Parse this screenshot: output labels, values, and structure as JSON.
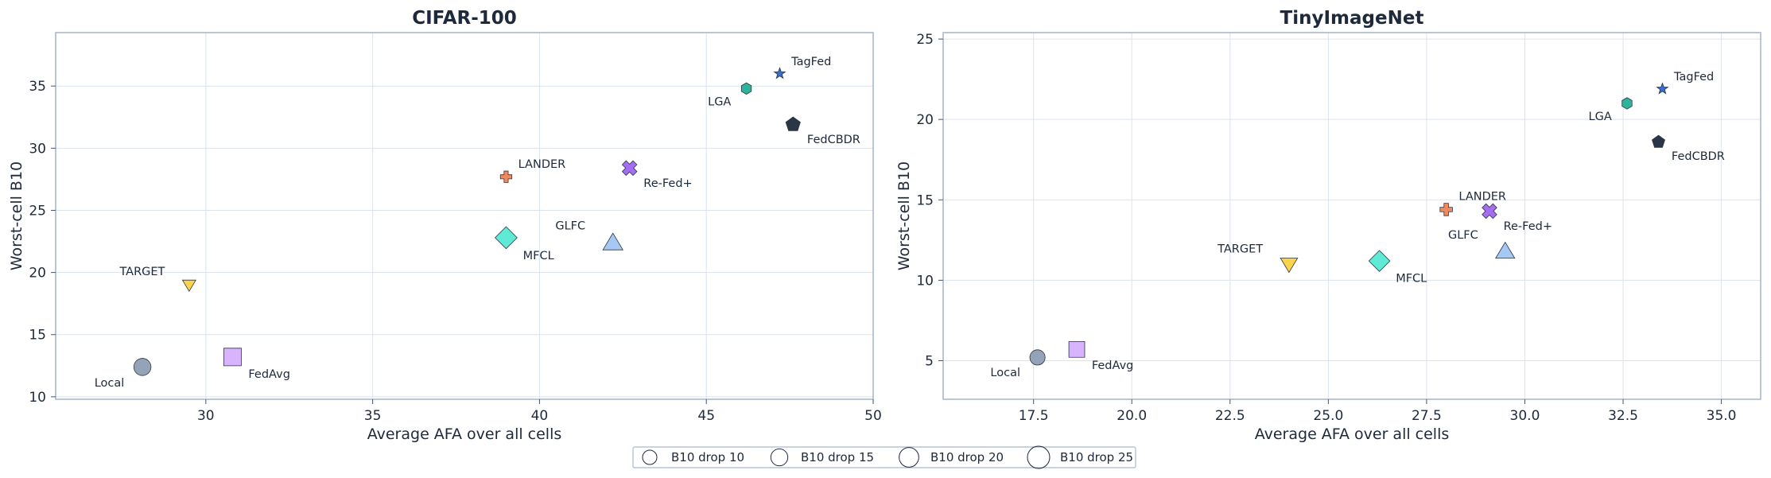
{
  "chart_data": [
    {
      "type": "scatter",
      "title": "CIFAR-100",
      "xlabel": "Average AFA over all cells",
      "ylabel": "Worst-cell B10",
      "xlim": [
        25.5,
        50
      ],
      "ylim": [
        9.8,
        39.3
      ],
      "xticks": [
        30,
        35,
        40,
        45,
        50
      ],
      "yticks": [
        10,
        15,
        20,
        25,
        30,
        35
      ],
      "xtick_labels": [
        "30",
        "35",
        "40",
        "45",
        "50"
      ],
      "ytick_labels": [
        "10",
        "15",
        "20",
        "25",
        "30",
        "35"
      ],
      "grid": true,
      "points": [
        {
          "name": "Local",
          "x": 28.1,
          "y": 12.4,
          "drop": 18,
          "marker": "circle",
          "color": "#94a3b8",
          "label_pos": "bottom-left"
        },
        {
          "name": "FedAvg",
          "x": 30.8,
          "y": 13.2,
          "drop": 20,
          "marker": "square",
          "color": "#d8b4fe",
          "label_pos": "bottom-right"
        },
        {
          "name": "TARGET",
          "x": 29.5,
          "y": 19.0,
          "drop": 14,
          "marker": "triangle-down",
          "color": "#fcd34d",
          "label_pos": "top-left"
        },
        {
          "name": "MFCL",
          "x": 39.0,
          "y": 22.8,
          "drop": 22,
          "marker": "diamond",
          "color": "#5eead4",
          "label_pos": "bottom-right"
        },
        {
          "name": "GLFC",
          "x": 42.2,
          "y": 22.4,
          "drop": 21,
          "marker": "triangle-up",
          "color": "#a5c8f5",
          "label_pos": "top-left"
        },
        {
          "name": "LANDER",
          "x": 39.0,
          "y": 27.7,
          "drop": 12,
          "marker": "plus",
          "color": "#f08a5d",
          "label_pos": "top-right"
        },
        {
          "name": "Re-Fed+",
          "x": 42.7,
          "y": 28.4,
          "drop": 16,
          "marker": "x",
          "color": "#a56ef0",
          "label_pos": "bottom-right"
        },
        {
          "name": "LGA",
          "x": 46.2,
          "y": 34.8,
          "drop": 12,
          "marker": "hexagon",
          "color": "#2fb39a",
          "label_pos": "bottom-left"
        },
        {
          "name": "TagFed",
          "x": 47.2,
          "y": 36.0,
          "drop": 11,
          "marker": "star",
          "color": "#3a6fc9",
          "label_pos": "top-right"
        },
        {
          "name": "FedCBDR",
          "x": 47.6,
          "y": 31.9,
          "drop": 16,
          "marker": "pentagon",
          "color": "#2b3548",
          "label_pos": "bottom-right"
        }
      ]
    },
    {
      "type": "scatter",
      "title": "TinyImageNet",
      "xlabel": "Average AFA over all cells",
      "ylabel": "Worst-cell B10",
      "xlim": [
        15.2,
        36.0
      ],
      "ylim": [
        2.6,
        25.4
      ],
      "xticks": [
        17.5,
        20.0,
        22.5,
        25.0,
        27.5,
        30.0,
        32.5,
        35.0
      ],
      "yticks": [
        5,
        10,
        15,
        20,
        25
      ],
      "xtick_labels": [
        "17.5",
        "20.0",
        "22.5",
        "25.0",
        "27.5",
        "30.0",
        "32.5",
        "35.0"
      ],
      "ytick_labels": [
        "5",
        "10",
        "15",
        "20",
        "25"
      ],
      "grid": true,
      "points": [
        {
          "name": "Local",
          "x": 17.6,
          "y": 5.2,
          "drop": 16,
          "marker": "circle",
          "color": "#94a3b8",
          "label_pos": "bottom-left"
        },
        {
          "name": "FedAvg",
          "x": 18.6,
          "y": 5.7,
          "drop": 18,
          "marker": "square",
          "color": "#d8b4fe",
          "label_pos": "bottom-right"
        },
        {
          "name": "TARGET",
          "x": 24.0,
          "y": 11.0,
          "drop": 18,
          "marker": "triangle-down",
          "color": "#fcd34d",
          "label_pos": "top-left"
        },
        {
          "name": "MFCL",
          "x": 26.3,
          "y": 11.2,
          "drop": 21,
          "marker": "diamond",
          "color": "#5eead4",
          "label_pos": "bottom-right"
        },
        {
          "name": "GLFC",
          "x": 29.5,
          "y": 11.8,
          "drop": 20,
          "marker": "triangle-up",
          "color": "#a5c8f5",
          "label_pos": "top-left"
        },
        {
          "name": "LANDER",
          "x": 28.0,
          "y": 14.4,
          "drop": 13,
          "marker": "plus",
          "color": "#f08a5d",
          "label_pos": "top-right"
        },
        {
          "name": "Re-Fed+",
          "x": 29.1,
          "y": 14.3,
          "drop": 16,
          "marker": "x",
          "color": "#a56ef0",
          "label_pos": "bottom-right"
        },
        {
          "name": "LGA",
          "x": 32.6,
          "y": 21.0,
          "drop": 12,
          "marker": "hexagon",
          "color": "#2fb39a",
          "label_pos": "bottom-left"
        },
        {
          "name": "TagFed",
          "x": 33.5,
          "y": 21.9,
          "drop": 11,
          "marker": "star",
          "color": "#3a6fc9",
          "label_pos": "top-right"
        },
        {
          "name": "FedCBDR",
          "x": 33.4,
          "y": 18.6,
          "drop": 14,
          "marker": "pentagon",
          "color": "#2b3548",
          "label_pos": "bottom-right"
        }
      ]
    }
  ],
  "legend": {
    "placement": "bottom-center",
    "items": [
      {
        "label": "B10 drop 10",
        "drop": 10
      },
      {
        "label": "B10 drop 15",
        "drop": 15
      },
      {
        "label": "B10 drop 20",
        "drop": 20
      },
      {
        "label": "B10 drop 25",
        "drop": 25
      }
    ]
  },
  "colors": {
    "axes_border": "#aab8cf",
    "grid": "#dbe3ee",
    "text": "#1e293b",
    "marker_edge": "#2b3548"
  }
}
